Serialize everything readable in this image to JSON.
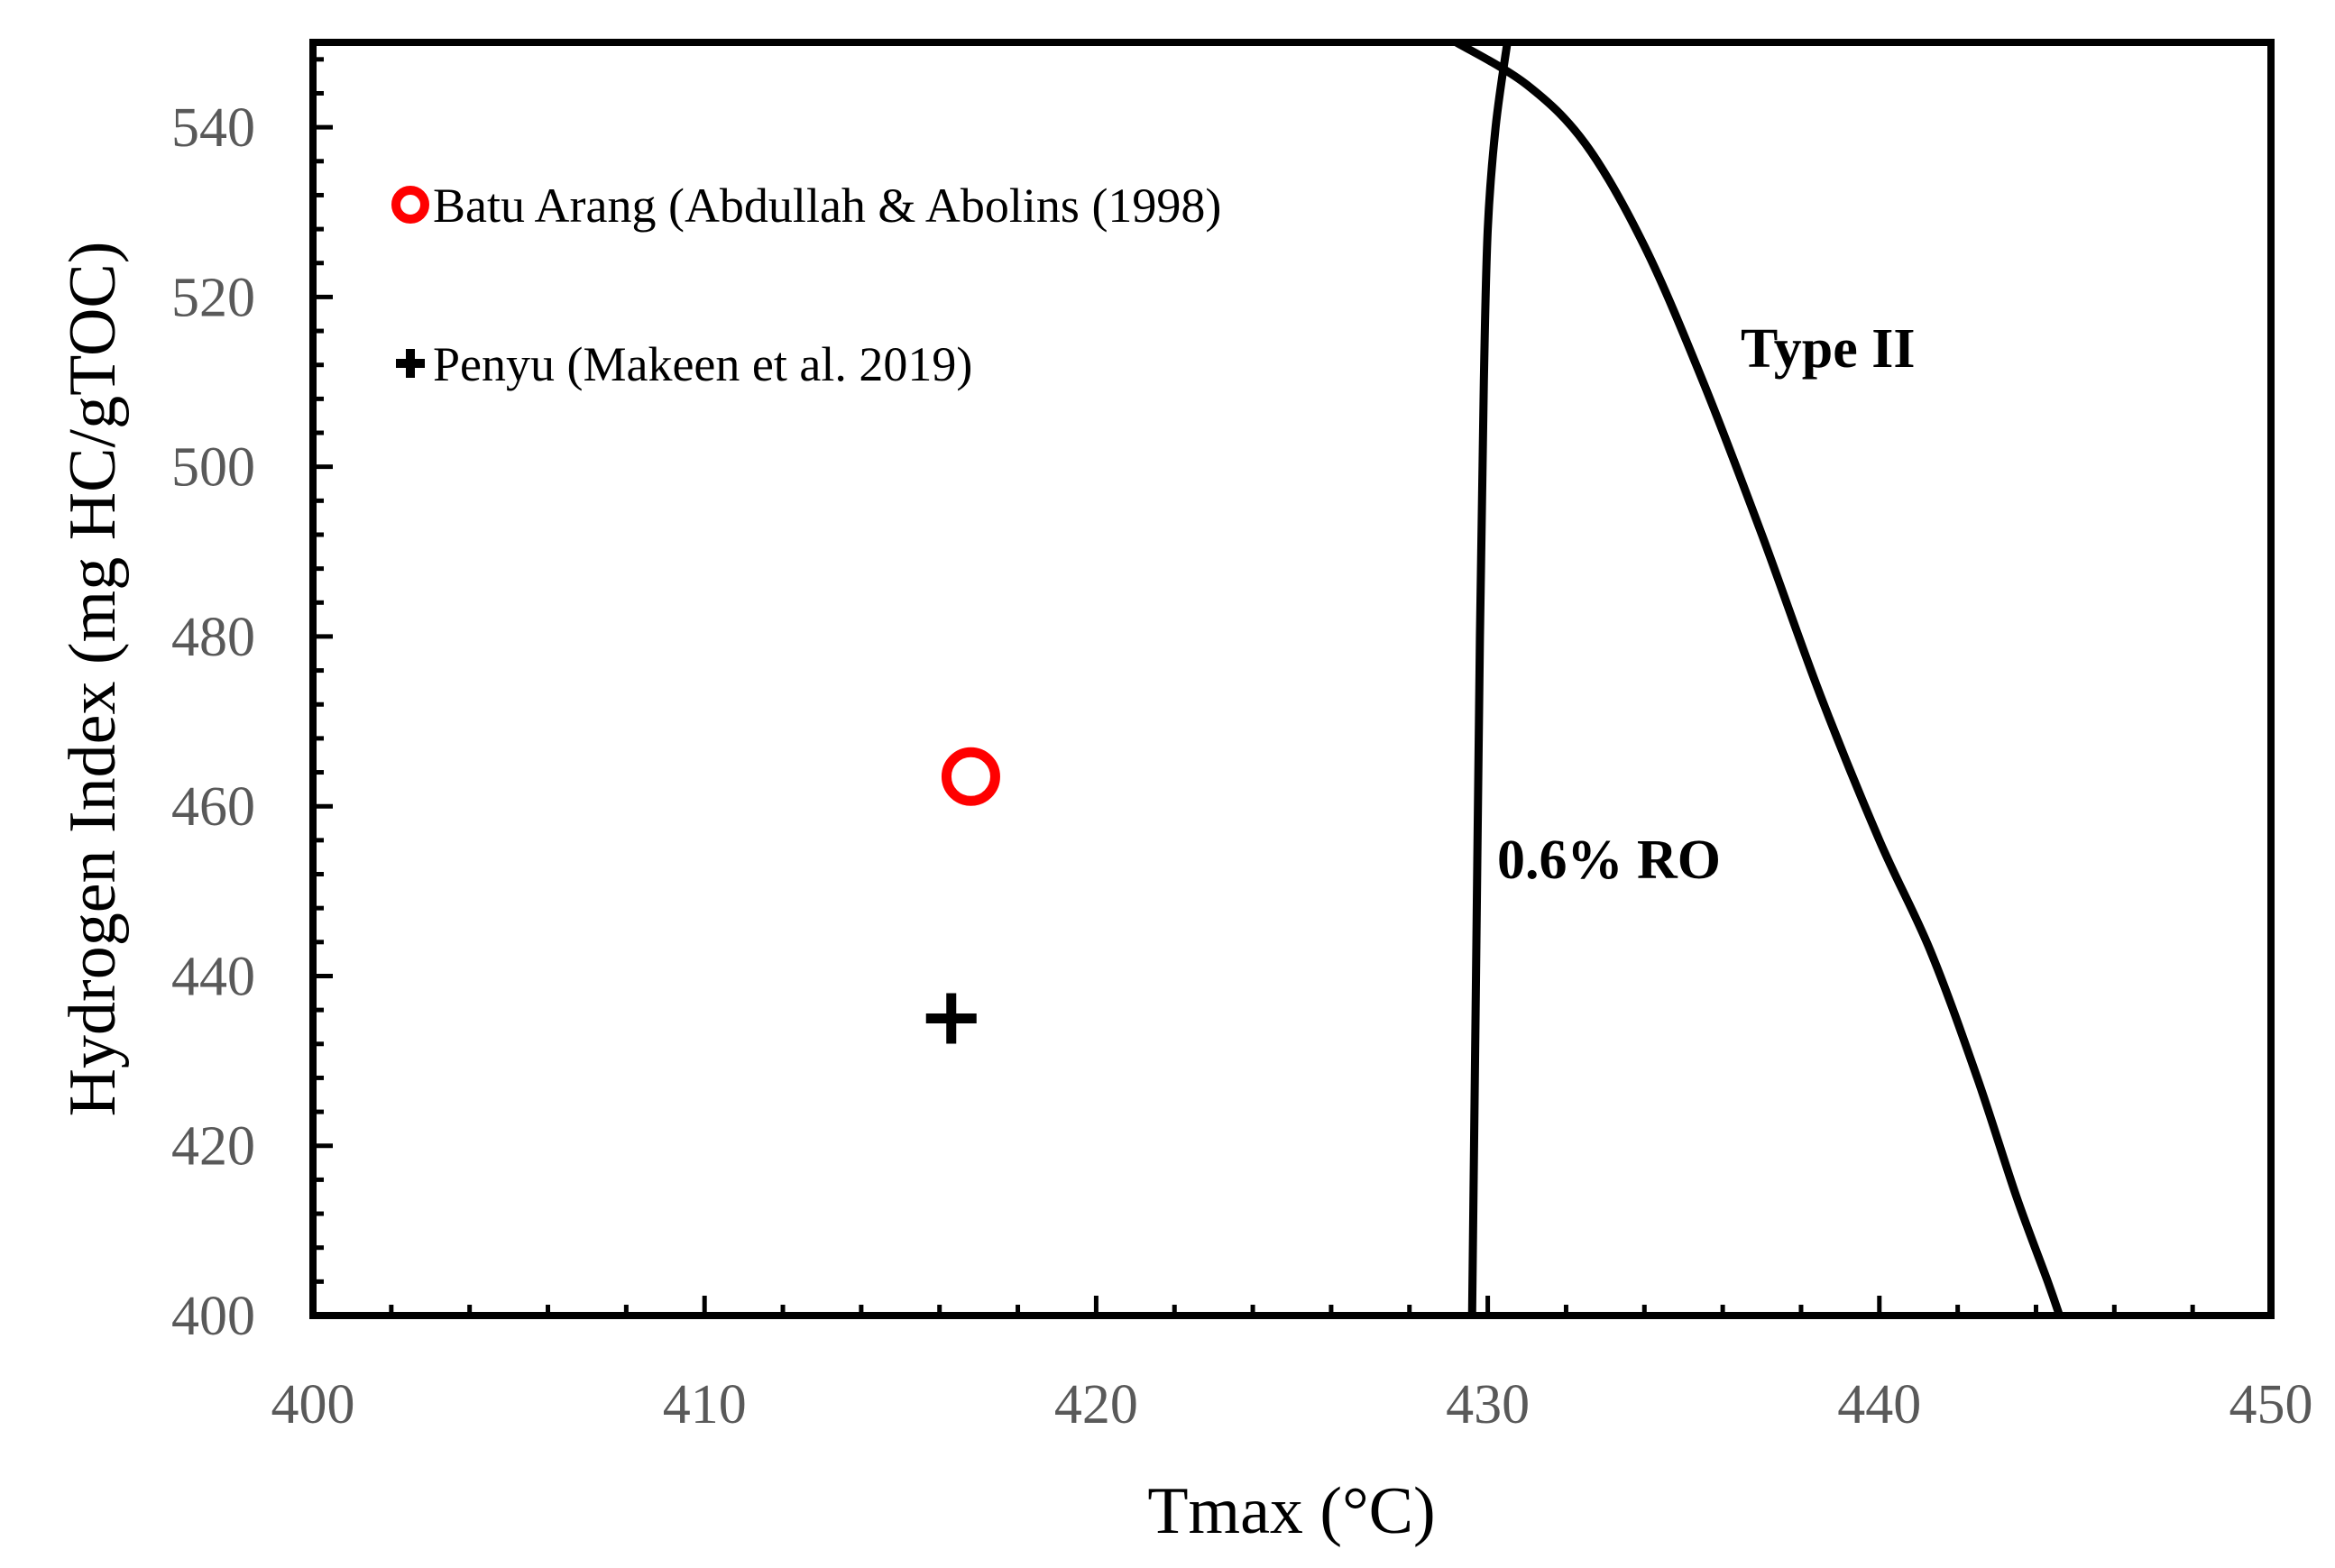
{
  "chart_data": {
    "type": "scatter",
    "title": "",
    "xlabel": "Tmax (°C)",
    "ylabel": "Hydrogen Index (mg HC/gTOC)",
    "xlim": [
      400,
      450
    ],
    "ylim": [
      400,
      550
    ],
    "xticks": [
      400,
      410,
      420,
      430,
      440,
      450
    ],
    "yticks": [
      400,
      420,
      440,
      460,
      480,
      500,
      520,
      540
    ],
    "grid": false,
    "legend_position": "top-left",
    "series": [
      {
        "name": "Batu Arang (Abdullah & Abolins (1998)",
        "marker": "circle-open",
        "color": "#ff0000",
        "points": [
          {
            "x": 416.8,
            "y": 463.5
          }
        ]
      },
      {
        "name": "Penyu (Makeen et al. 2019)",
        "marker": "plus",
        "color": "#000000",
        "points": [
          {
            "x": 416.3,
            "y": 435
          }
        ]
      }
    ],
    "curves": [
      {
        "name": "0.6% RO",
        "label": "0.6% RO",
        "points": [
          [
            429.6,
            400
          ],
          [
            429.7,
            440
          ],
          [
            429.8,
            480
          ],
          [
            429.9,
            510
          ],
          [
            430.0,
            528
          ],
          [
            430.2,
            540
          ],
          [
            430.5,
            550
          ]
        ]
      },
      {
        "name": "Type II",
        "label": "Type II",
        "points": [
          [
            429.2,
            550
          ],
          [
            431,
            545
          ],
          [
            432.5,
            538
          ],
          [
            434,
            526
          ],
          [
            435.5,
            510
          ],
          [
            437,
            492
          ],
          [
            438.5,
            473
          ],
          [
            440,
            456
          ],
          [
            441.3,
            443
          ],
          [
            442.5,
            428
          ],
          [
            443.5,
            414
          ],
          [
            444.3,
            404
          ],
          [
            444.6,
            400
          ]
        ]
      }
    ]
  }
}
